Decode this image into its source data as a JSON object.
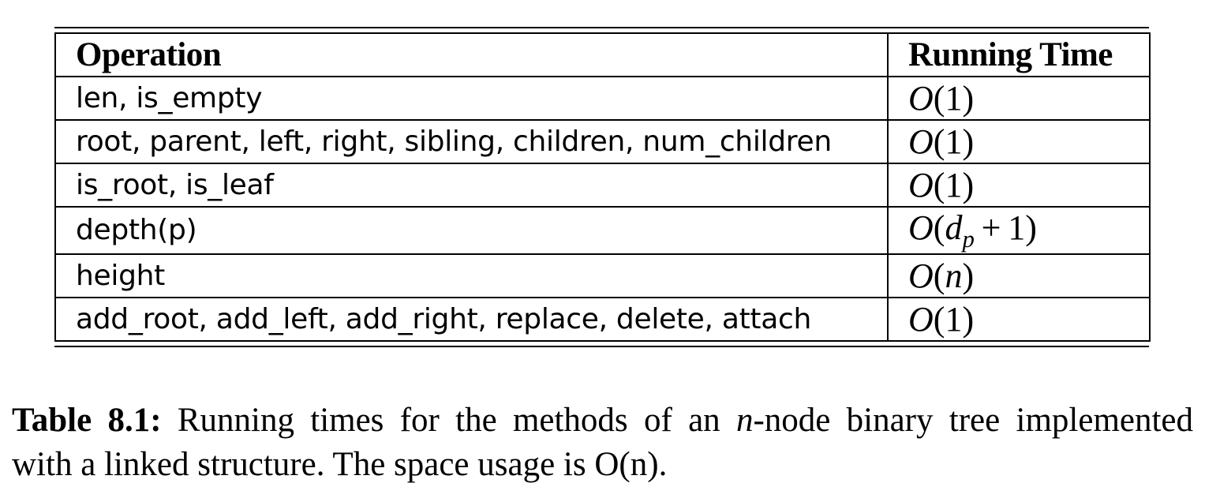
{
  "table": {
    "headers": {
      "operation": "Operation",
      "running_time": "Running Time"
    },
    "rows": [
      {
        "operation": "len, is_empty",
        "running_time": "O(1)"
      },
      {
        "operation": "root, parent, left, right, sibling, children, num_children",
        "running_time": "O(1)"
      },
      {
        "operation": "is_root, is_leaf",
        "running_time": "O(1)"
      },
      {
        "operation": "depth(p)",
        "running_time": "O(d_p + 1)"
      },
      {
        "operation": "height",
        "running_time": "O(n)"
      },
      {
        "operation": "add_root, add_left, add_right, replace, delete, attach",
        "running_time": "O(1)"
      }
    ]
  },
  "caption": {
    "label": "Table 8.1:",
    "text_part1": " Running times for the methods of an ",
    "var_n": "n",
    "text_part2": "-node binary tree implemented",
    "line2_text": "with a linked structure. The space usage is ",
    "space_usage": "O(n)",
    "end": "."
  }
}
